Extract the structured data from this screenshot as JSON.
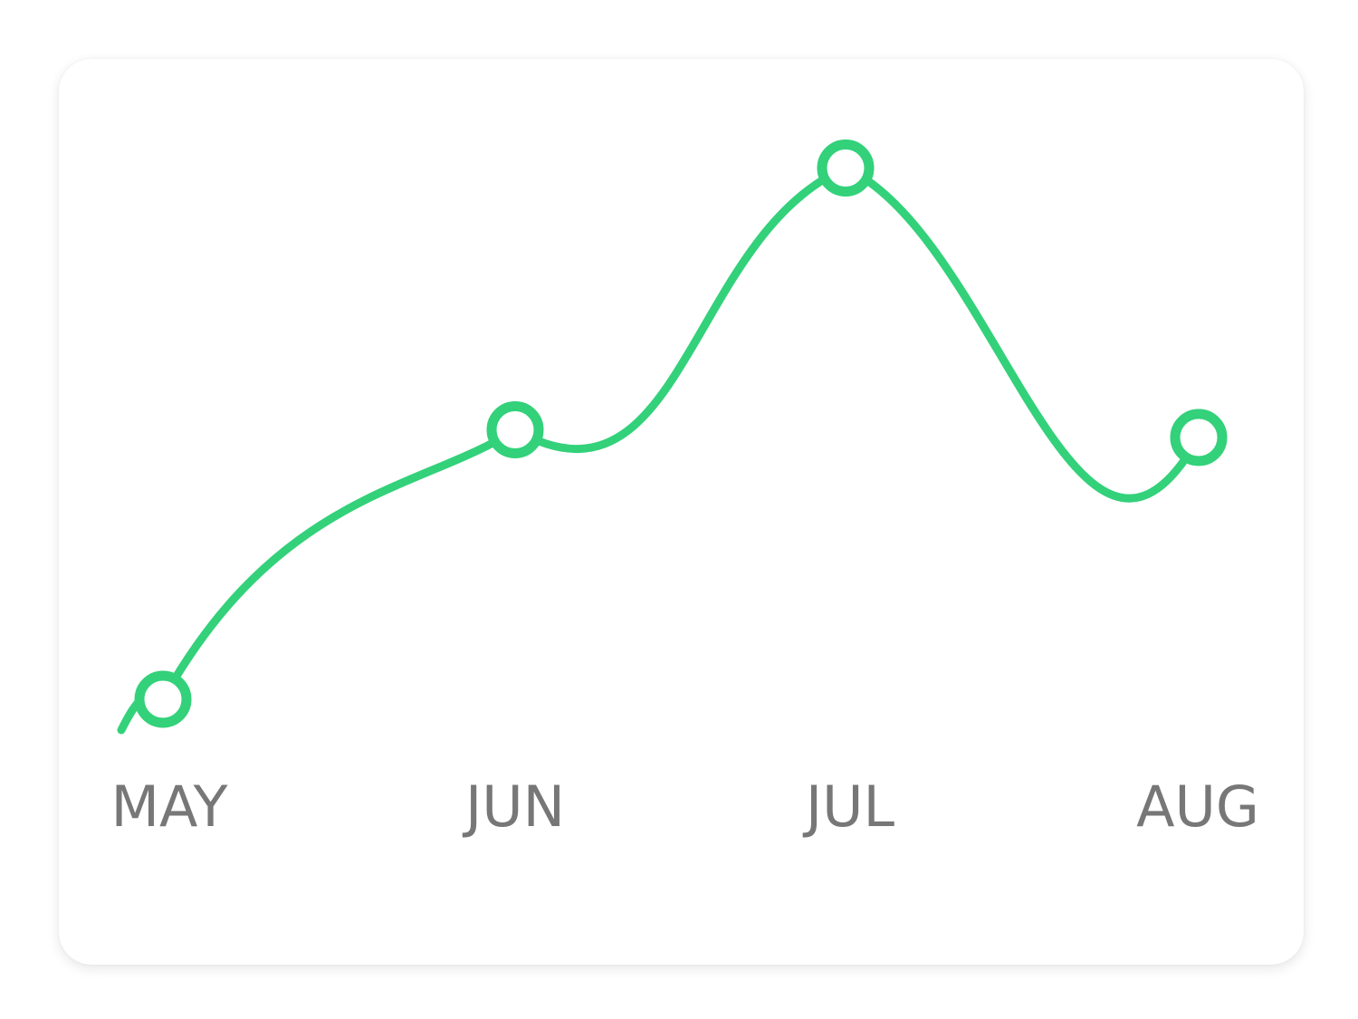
{
  "chart_data": {
    "type": "line",
    "categories": [
      "MAY",
      "JUN",
      "JUL",
      "AUG"
    ],
    "series": [
      {
        "values": [
          18,
          53,
          87,
          52
        ]
      }
    ],
    "ylim": [
      0,
      100
    ],
    "grid": false,
    "legend": "none",
    "line_color": "#33d17a",
    "label_color": "#777777",
    "marker_fill": "#ffffff"
  }
}
